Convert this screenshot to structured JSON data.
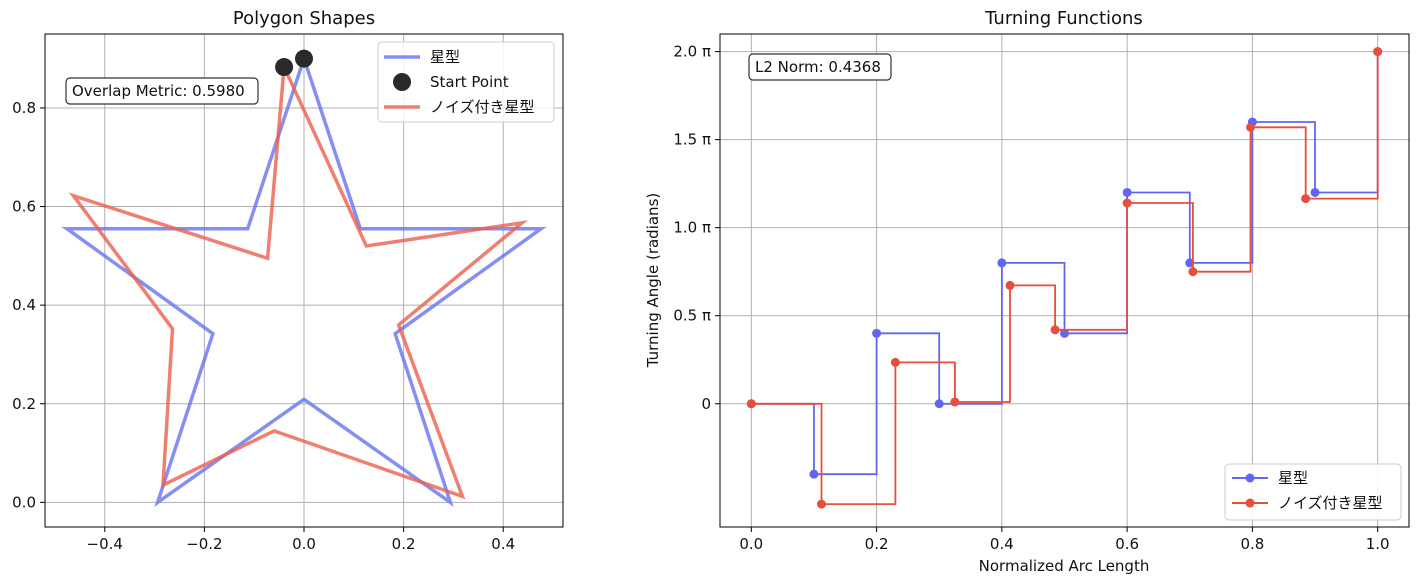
{
  "chart_data": [
    {
      "type": "line",
      "title": "Polygon Shapes",
      "xlabel": "",
      "ylabel": "",
      "xlim": [
        -0.52,
        0.52
      ],
      "ylim": [
        -0.05,
        0.95
      ],
      "xticks": [
        -0.4,
        -0.2,
        0.0,
        0.2,
        0.4
      ],
      "xtick_labels": [
        "−0.4",
        "−0.2",
        "0.0",
        "0.2",
        "0.4"
      ],
      "yticks": [
        0.0,
        0.2,
        0.4,
        0.6,
        0.8
      ],
      "ytick_labels": [
        "0.0",
        "0.2",
        "0.4",
        "0.6",
        "0.8"
      ],
      "grid": true,
      "legend_position": "top-right",
      "annotation": "Overlap Metric: 0.5980",
      "series": [
        {
          "name": "星型",
          "color": "#6673f0",
          "points": [
            [
              0.0,
              0.9
            ],
            [
              0.113,
              0.555
            ],
            [
              0.476,
              0.555
            ],
            [
              0.183,
              0.342
            ],
            [
              0.294,
              -0.0
            ],
            [
              0.0,
              0.209
            ],
            [
              -0.294,
              -0.0
            ],
            [
              -0.183,
              0.342
            ],
            [
              -0.476,
              0.555
            ],
            [
              -0.113,
              0.555
            ],
            [
              0.0,
              0.9
            ]
          ]
        },
        {
          "name": "ノイズ付き星型",
          "color": "#ec5f4f",
          "points": [
            [
              -0.04,
              0.883
            ],
            [
              0.125,
              0.52
            ],
            [
              0.438,
              0.567
            ],
            [
              0.19,
              0.36
            ],
            [
              0.318,
              0.012
            ],
            [
              -0.06,
              0.145
            ],
            [
              -0.283,
              0.035
            ],
            [
              -0.264,
              0.352
            ],
            [
              -0.463,
              0.622
            ],
            [
              -0.073,
              0.495
            ],
            [
              -0.04,
              0.883
            ]
          ]
        }
      ],
      "start_points": {
        "name": "Start Point",
        "color": "#2a2a2a",
        "points": [
          [
            0.0,
            0.9
          ],
          [
            -0.04,
            0.883
          ]
        ]
      }
    },
    {
      "type": "line",
      "title": "Turning Functions",
      "xlabel": "Normalized Arc Length",
      "ylabel": "Turning Angle (radians)",
      "xlim": [
        -0.05,
        1.05
      ],
      "ylim": [
        -0.7,
        2.1
      ],
      "xticks": [
        0.0,
        0.2,
        0.4,
        0.6,
        0.8,
        1.0
      ],
      "xtick_labels": [
        "0.0",
        "0.2",
        "0.4",
        "0.6",
        "0.8",
        "1.0"
      ],
      "yticks": [
        0.0,
        0.5,
        1.0,
        1.5,
        2.0
      ],
      "ytick_labels": [
        "0",
        "0.5 π",
        "1.0 π",
        "1.5 π",
        "2.0 π"
      ],
      "y_unit": "π rad",
      "grid": true,
      "legend_position": "lower-right",
      "annotation": "L2 Norm: 0.4368",
      "series": [
        {
          "name": "星型",
          "color": "#6066f0",
          "x": [
            0.0,
            0.1,
            0.2,
            0.3,
            0.4,
            0.5,
            0.6,
            0.7,
            0.8,
            0.9,
            1.0
          ],
          "y": [
            0.0,
            -0.4,
            0.4,
            0.0,
            0.8,
            0.4,
            1.2,
            0.8,
            1.6,
            1.2,
            2.0
          ]
        },
        {
          "name": "ノイズ付き星型",
          "color": "#e84e3c",
          "x": [
            0.0,
            0.112,
            0.23,
            0.325,
            0.413,
            0.485,
            0.6,
            0.705,
            0.797,
            0.885,
            1.0
          ],
          "y": [
            0.0,
            -0.57,
            0.235,
            0.01,
            0.672,
            0.42,
            1.14,
            0.75,
            1.57,
            1.165,
            2.0
          ]
        }
      ]
    }
  ]
}
